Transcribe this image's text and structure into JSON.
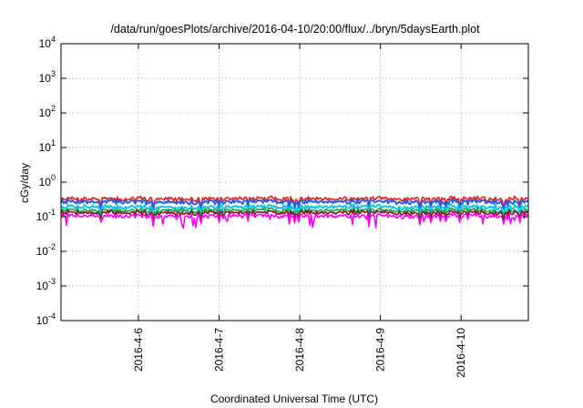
{
  "chart_data": {
    "type": "line",
    "title": "/data/run/goesPlots/archive/2016-04-10/20:00/flux/../bryn/5daysEarth.plot",
    "xlabel": "Coordinated Universal Time (UTC)",
    "ylabel": "cGy/day",
    "yscale": "log",
    "ylim": [
      0.0001,
      10000
    ],
    "xlim": [
      "2016-04-05 01:00",
      "2016-04-10 20:00"
    ],
    "grid": true,
    "legend": "none",
    "x_ticks": [
      "2016-4-6",
      "2016-4-7",
      "2016-4-8",
      "2016-4-9",
      "2016-4-10"
    ],
    "y_ticks": [
      {
        "base": "10",
        "exp": "-4"
      },
      {
        "base": "10",
        "exp": "-3"
      },
      {
        "base": "10",
        "exp": "-2"
      },
      {
        "base": "10",
        "exp": "-1"
      },
      {
        "base": "10",
        "exp": "0"
      },
      {
        "base": "10",
        "exp": "1"
      },
      {
        "base": "10",
        "exp": "2"
      },
      {
        "base": "10",
        "exp": "3"
      },
      {
        "base": "10",
        "exp": "4"
      }
    ],
    "x": [
      "2016-04-05 01:00",
      "2016-04-05 12:00",
      "2016-04-06 00:00",
      "2016-04-06 12:00",
      "2016-04-07 00:00",
      "2016-04-07 12:00",
      "2016-04-08 00:00",
      "2016-04-08 12:00",
      "2016-04-09 00:00",
      "2016-04-09 12:00",
      "2016-04-10 00:00",
      "2016-04-10 12:00",
      "2016-04-10 20:00"
    ],
    "x_days": [
      0,
      0.458,
      0.958,
      1.458,
      1.958,
      2.458,
      2.958,
      3.458,
      3.958,
      4.458,
      4.958,
      5.458,
      5.792
    ],
    "series": [
      {
        "color": "#e0201c",
        "values": [
          0.34,
          0.33,
          0.33,
          0.32,
          0.33,
          0.34,
          0.33,
          0.34,
          0.33,
          0.33,
          0.34,
          0.33,
          0.33
        ]
      },
      {
        "color": "#2a5ce6",
        "values": [
          0.28,
          0.27,
          0.27,
          0.26,
          0.27,
          0.28,
          0.27,
          0.28,
          0.27,
          0.26,
          0.28,
          0.27,
          0.27
        ]
      },
      {
        "color": "#12c8e0",
        "values": [
          0.2,
          0.19,
          0.19,
          0.18,
          0.19,
          0.2,
          0.19,
          0.2,
          0.19,
          0.18,
          0.2,
          0.19,
          0.19
        ]
      },
      {
        "color": "#20a040",
        "values": [
          0.16,
          0.15,
          0.15,
          0.15,
          0.15,
          0.16,
          0.15,
          0.16,
          0.15,
          0.15,
          0.16,
          0.15,
          0.15
        ]
      },
      {
        "color": "#8a1030",
        "values": [
          0.135,
          0.13,
          0.13,
          0.125,
          0.13,
          0.135,
          0.13,
          0.135,
          0.13,
          0.125,
          0.135,
          0.13,
          0.13
        ]
      },
      {
        "color": "#ff00ff",
        "values": [
          0.11,
          0.105,
          0.105,
          0.1,
          0.105,
          0.11,
          0.105,
          0.11,
          0.105,
          0.1,
          0.11,
          0.105,
          0.105
        ]
      }
    ]
  }
}
